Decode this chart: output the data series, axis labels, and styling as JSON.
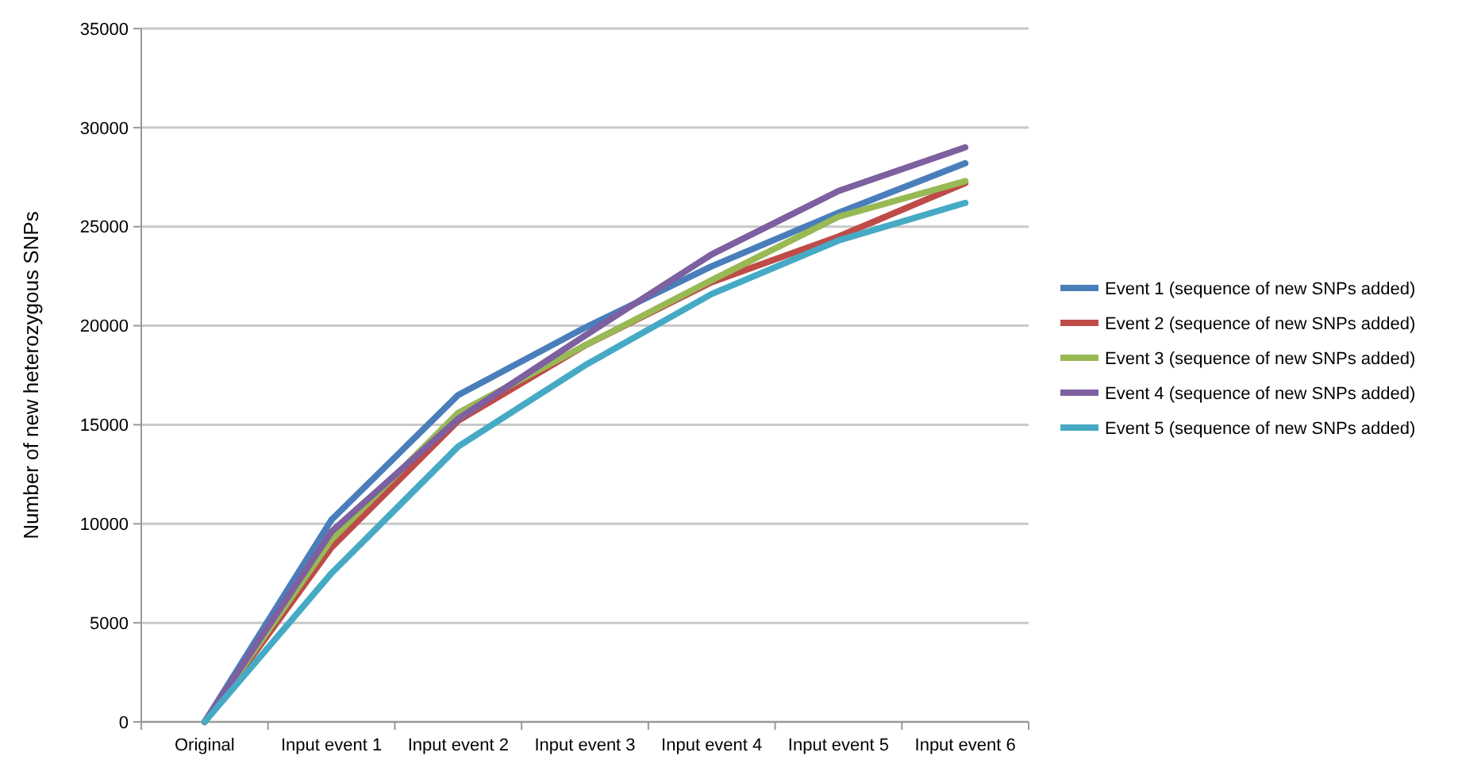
{
  "chart_data": {
    "type": "line",
    "ylabel": "Number of new heterozygous SNPs",
    "categories": [
      "Original",
      "Input event 1",
      "Input event 2",
      "Input event 3",
      "Input event 4",
      "Input event 5",
      "Input event 6"
    ],
    "series": [
      {
        "name": "Event 1 (sequence of new SNPs added)",
        "color": "#4a7ebb",
        "values": [
          0,
          10200,
          16500,
          19900,
          23000,
          25700,
          28200
        ]
      },
      {
        "name": "Event 2 (sequence of new SNPs added)",
        "color": "#be4b48",
        "values": [
          0,
          8800,
          15200,
          19000,
          22200,
          24500,
          27200
        ]
      },
      {
        "name": "Event 3 (sequence of new SNPs added)",
        "color": "#98b954",
        "values": [
          0,
          9200,
          15600,
          19000,
          22300,
          25500,
          27300
        ]
      },
      {
        "name": "Event 4 (sequence of new SNPs added)",
        "color": "#7d60a0",
        "values": [
          0,
          9600,
          15300,
          19500,
          23600,
          26800,
          29000
        ]
      },
      {
        "name": "Event 5 (sequence of new SNPs added)",
        "color": "#46aac5",
        "values": [
          0,
          7500,
          13900,
          18000,
          21600,
          24300,
          26200
        ]
      }
    ],
    "ylim": [
      0,
      35000
    ],
    "yticks": [
      0,
      5000,
      10000,
      15000,
      20000,
      25000,
      30000,
      35000
    ],
    "grid": "y",
    "legend": "right",
    "line_style": "solid"
  }
}
